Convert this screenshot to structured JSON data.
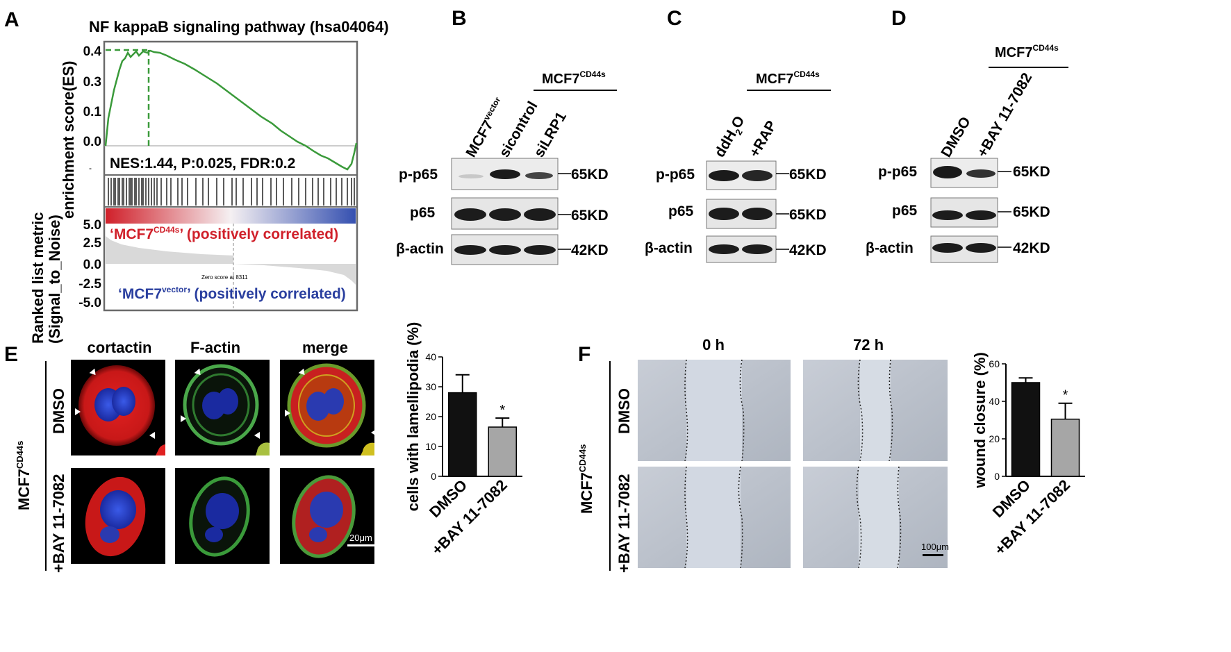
{
  "panel_letters": {
    "a": "A",
    "b": "B",
    "c": "C",
    "d": "D",
    "e": "E",
    "f": "F"
  },
  "gsea": {
    "title": "NF kappaB signaling pathway (hsa04064)",
    "es_axis_label": "enrichment score(ES)",
    "es_ticks": [
      "0.4",
      "0.3",
      "0.1",
      "0.0"
    ],
    "stats": "NES:1.44, P:0.025, FDR:0.2",
    "metric_axis_label_1": "Ranked list metric",
    "metric_axis_label_2": "(Signal_to_Noise)",
    "metric_ticks": [
      "5.0",
      "2.5",
      "0.0",
      "-2.5",
      "-5.0"
    ],
    "pos_label_pre": "‘MCF7",
    "pos_label_sup": "CD44s",
    "pos_label_post": "’ (positively correlated)",
    "neg_label_pre": "‘MCF7",
    "neg_label_sup": "vector",
    "neg_label_post": "’ (positively correlated)",
    "zero_note": "Zero score at 8311",
    "pos_color": "#d0202a",
    "neg_color": "#2a3f9f",
    "curve_color": "#3a9a3a"
  },
  "blot_b": {
    "group_label": "MCF7",
    "group_sup": "CD44s",
    "lane1_label": "MCF7",
    "lane1_sup": "vector",
    "lane2_label": "sicontrol",
    "lane3_label": "siLRP1",
    "rows": [
      {
        "name": "p-p65",
        "mw": "65KD"
      },
      {
        "name": "p65",
        "mw": "65KD"
      },
      {
        "name": "β-actin",
        "mw": "42KD"
      }
    ]
  },
  "blot_c": {
    "group_label": "MCF7",
    "group_sup": "CD44s",
    "lane1_label": "ddH",
    "lane1_sub": "2",
    "lane1_post": "O",
    "lane2_label": "+RAP",
    "rows": [
      {
        "name": "p-p65",
        "mw": "65KD"
      },
      {
        "name": "p65",
        "mw": "65KD"
      },
      {
        "name": "β-actin",
        "mw": "42KD"
      }
    ]
  },
  "blot_d": {
    "group_label": "MCF7",
    "group_sup": "CD44s",
    "lane1_label": "DMSO",
    "lane2_label": "+BAY 11-7082",
    "rows": [
      {
        "name": "p-p65",
        "mw": "65KD"
      },
      {
        "name": "p65",
        "mw": "65KD"
      },
      {
        "name": "β-actin",
        "mw": "42KD"
      }
    ]
  },
  "panel_e": {
    "cell_line": "MCF7",
    "cell_line_sup": "CD44s",
    "columns": [
      "cortactin",
      "F-actin",
      "merge"
    ],
    "row_labels": [
      "DMSO",
      "+BAY 11-7082"
    ],
    "scale_bar": "20μm"
  },
  "panel_f": {
    "cell_line": "MCF7",
    "cell_line_sup": "CD44s",
    "columns": [
      "0 h",
      "72 h"
    ],
    "row_labels": [
      "DMSO",
      "+BAY 11-7082"
    ],
    "scale_bar": "100μm"
  },
  "chart_data": [
    {
      "type": "bar",
      "categories": [
        "DMSO",
        "+BAY 11-7082"
      ],
      "values": [
        28,
        16.5
      ],
      "errors": [
        6,
        3
      ],
      "ylabel": "cells with lamellipodia (%)",
      "ylim": [
        0,
        40
      ],
      "yticks": [
        "0",
        "10",
        "20",
        "30",
        "40"
      ],
      "significance": [
        "",
        "*"
      ],
      "bar_colors": [
        "#111111",
        "#a6a6a6"
      ]
    },
    {
      "type": "bar",
      "categories": [
        "DMSO",
        "+BAY 11-7082"
      ],
      "values": [
        50,
        30.5
      ],
      "errors": [
        2.5,
        8.5
      ],
      "ylabel": "wound closure (%)",
      "ylim": [
        0,
        60
      ],
      "yticks": [
        "0",
        "20",
        "40",
        "60"
      ],
      "significance": [
        "",
        "*"
      ],
      "bar_colors": [
        "#111111",
        "#a6a6a6"
      ]
    }
  ]
}
